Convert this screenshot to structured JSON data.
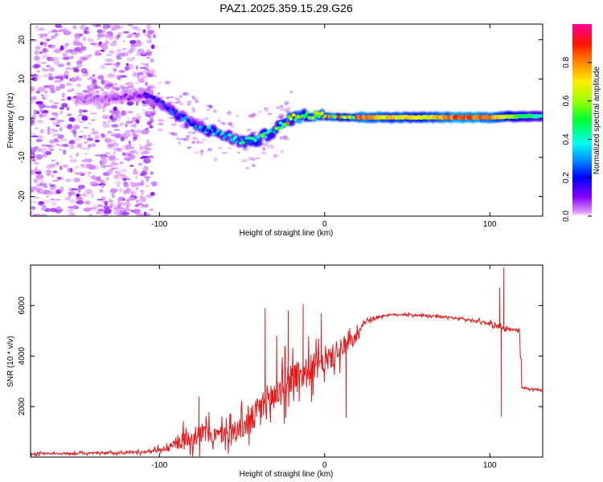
{
  "figure": {
    "title": "PAZ1.2025.359.15.29.G26"
  },
  "chart_data": [
    {
      "type": "heatmap",
      "panel": "spectrogram",
      "xlabel": "Height of straight line (km)",
      "ylabel": "Frequency (Hz)",
      "xlim": [
        -178,
        132
      ],
      "ylim": [
        -25,
        24
      ],
      "xticks": [
        -100,
        0,
        100
      ],
      "yticks": [
        -20,
        -10,
        0,
        10,
        20
      ],
      "colorbar": {
        "label": "Normalized spectral amplitude",
        "range": [
          0,
          1
        ],
        "ticks": [
          "0.0",
          "0.2",
          "0.4",
          "0.6",
          "0.8"
        ],
        "colors": [
          "#ffffff",
          "#cc66ff",
          "#7700ff",
          "#0000ff",
          "#00ffff",
          "#00ff00",
          "#ffff00",
          "#ff8800",
          "#ff0000",
          "#ff0099"
        ]
      },
      "ridge": {
        "x_km": [
          -140,
          -120,
          -110,
          -100,
          -90,
          -80,
          -70,
          -60,
          -50,
          -40,
          -30,
          -25,
          -20,
          -10,
          0,
          10,
          20,
          40,
          60,
          80,
          100,
          120,
          132
        ],
        "freq_hz": [
          5,
          5.5,
          6,
          4,
          1,
          -1.5,
          -3,
          -4.5,
          -6,
          -5.5,
          -3,
          -1.5,
          0,
          0.8,
          0.5,
          0.3,
          0.2,
          0.2,
          0.2,
          0.2,
          0.2,
          0.5,
          0.5
        ],
        "amplitude": [
          0.05,
          0.08,
          0.12,
          0.2,
          0.25,
          0.28,
          0.32,
          0.35,
          0.4,
          0.45,
          0.5,
          0.6,
          0.7,
          0.7,
          0.75,
          0.8,
          0.85,
          0.75,
          0.7,
          0.9,
          0.85,
          0.5,
          0.4
        ]
      }
    },
    {
      "type": "line",
      "panel": "snr",
      "xlabel": "Height of straight line (km)",
      "ylabel": "SNR (10 * v/v)",
      "xlim": [
        -178,
        132
      ],
      "ylim": [
        0,
        7600
      ],
      "xticks": [
        -100,
        0,
        100
      ],
      "yticks": [
        2000,
        4000,
        6000
      ],
      "color": "#e8191a",
      "envelope": {
        "x": [
          -178,
          -140,
          -110,
          -95,
          -85,
          -75,
          -65,
          -55,
          -45,
          -38,
          -30,
          -25,
          -20,
          -10,
          0,
          10,
          20,
          25,
          35,
          45,
          60,
          80,
          100,
          105,
          107,
          110,
          118,
          119,
          132
        ],
        "mean": [
          130,
          150,
          200,
          350,
          700,
          950,
          850,
          1000,
          1400,
          2000,
          2500,
          2800,
          3200,
          3400,
          3800,
          4200,
          4800,
          5400,
          5600,
          5650,
          5600,
          5500,
          5300,
          5150,
          5100,
          5050,
          5000,
          2750,
          2650
        ],
        "noise": [
          60,
          60,
          80,
          150,
          500,
          600,
          500,
          600,
          800,
          900,
          1100,
          1000,
          900,
          900,
          700,
          600,
          300,
          120,
          80,
          60,
          60,
          70,
          90,
          120,
          150,
          120,
          80,
          60,
          60
        ]
      },
      "spikes": [
        {
          "x": -76,
          "y": 2400
        },
        {
          "x": -36,
          "y": 5900
        },
        {
          "x": -29,
          "y": 4800
        },
        {
          "x": -22,
          "y": 5800
        },
        {
          "x": -13,
          "y": 6050
        },
        {
          "x": -2,
          "y": 5700
        },
        {
          "x": 13,
          "y": 1550
        },
        {
          "x": 106,
          "y": 6700
        },
        {
          "x": 107,
          "y": 1600
        },
        {
          "x": 108.5,
          "y": 7500
        }
      ]
    }
  ]
}
